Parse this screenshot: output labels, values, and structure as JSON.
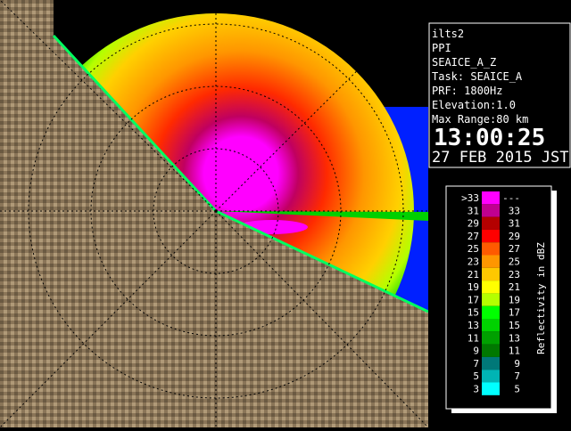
{
  "info": {
    "station": "ilts2",
    "mode": "PPI",
    "product": "SEAICE_A_Z",
    "task": "Task: SEAICE_A",
    "prf": "PRF: 1800Hz",
    "elevation": "Elevation:1.0",
    "max_range": "Max Range:80 km",
    "time": "13:00:25",
    "date": "27 FEB 2015 JST"
  },
  "legend": {
    "title": "Reflectivity in dBZ",
    "rows": [
      {
        "low": ">33",
        "high": "---",
        "color": "#ff00ff"
      },
      {
        "low": "31",
        "high": "33",
        "color": "#c00090"
      },
      {
        "low": "29",
        "high": "31",
        "color": "#b40000"
      },
      {
        "low": "27",
        "high": "29",
        "color": "#ff0000"
      },
      {
        "low": "25",
        "high": "27",
        "color": "#ff5a00"
      },
      {
        "low": "23",
        "high": "25",
        "color": "#ff9600"
      },
      {
        "low": "21",
        "high": "23",
        "color": "#ffc800"
      },
      {
        "low": "19",
        "high": "21",
        "color": "#ffff00"
      },
      {
        "low": "17",
        "high": "19",
        "color": "#b4ff00"
      },
      {
        "low": "15",
        "high": "17",
        "color": "#00ff00"
      },
      {
        "low": "13",
        "high": "15",
        "color": "#00d200"
      },
      {
        "low": "11",
        "high": "13",
        "color": "#00a000"
      },
      {
        "low": "9",
        "high": "11",
        "color": "#007800"
      },
      {
        "low": "7",
        "high": "9",
        "color": "#007878"
      },
      {
        "low": "5",
        "high": "7",
        "color": "#00b4b4"
      },
      {
        "low": "3",
        "high": "5",
        "color": "#00ffff"
      }
    ]
  }
}
